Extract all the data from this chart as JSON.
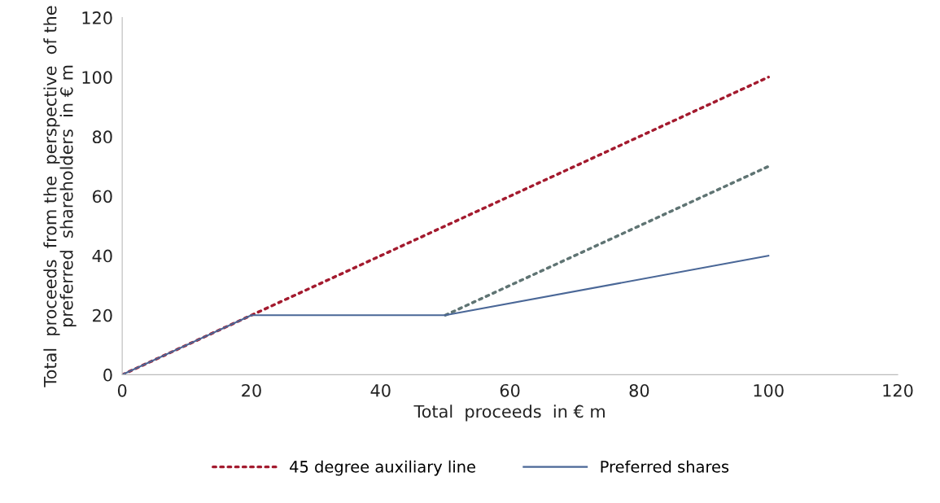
{
  "chart_data": {
    "type": "line",
    "xlabel": "Total  proceeds  in € m",
    "ylabel": "Total  proceeds  from the  perspective  of the\npreferred  shareholders  in € m",
    "series": [
      {
        "name": "45 degree auxiliary line",
        "color": "#a31a2e",
        "x": [
          0,
          100
        ],
        "values": [
          0,
          100
        ],
        "line_style": "dotted"
      },
      {
        "color": "#5f7473",
        "x": [
          50,
          100
        ],
        "values": [
          20,
          70
        ],
        "line_style": "dotted"
      },
      {
        "name": "Preferred shares",
        "color": "#4a6797",
        "x": [
          0,
          20,
          50,
          100
        ],
        "values": [
          0,
          20,
          20,
          40
        ],
        "line_style": "solid"
      }
    ],
    "xlim": [
      0,
      120
    ],
    "xticks": [
      0,
      20,
      40,
      60,
      80,
      100,
      120
    ],
    "ylim": [
      0,
      120
    ],
    "yticks": [
      0,
      20,
      40,
      60,
      80,
      100,
      120
    ],
    "grid": false,
    "legend": "bottom",
    "marker": "none"
  }
}
